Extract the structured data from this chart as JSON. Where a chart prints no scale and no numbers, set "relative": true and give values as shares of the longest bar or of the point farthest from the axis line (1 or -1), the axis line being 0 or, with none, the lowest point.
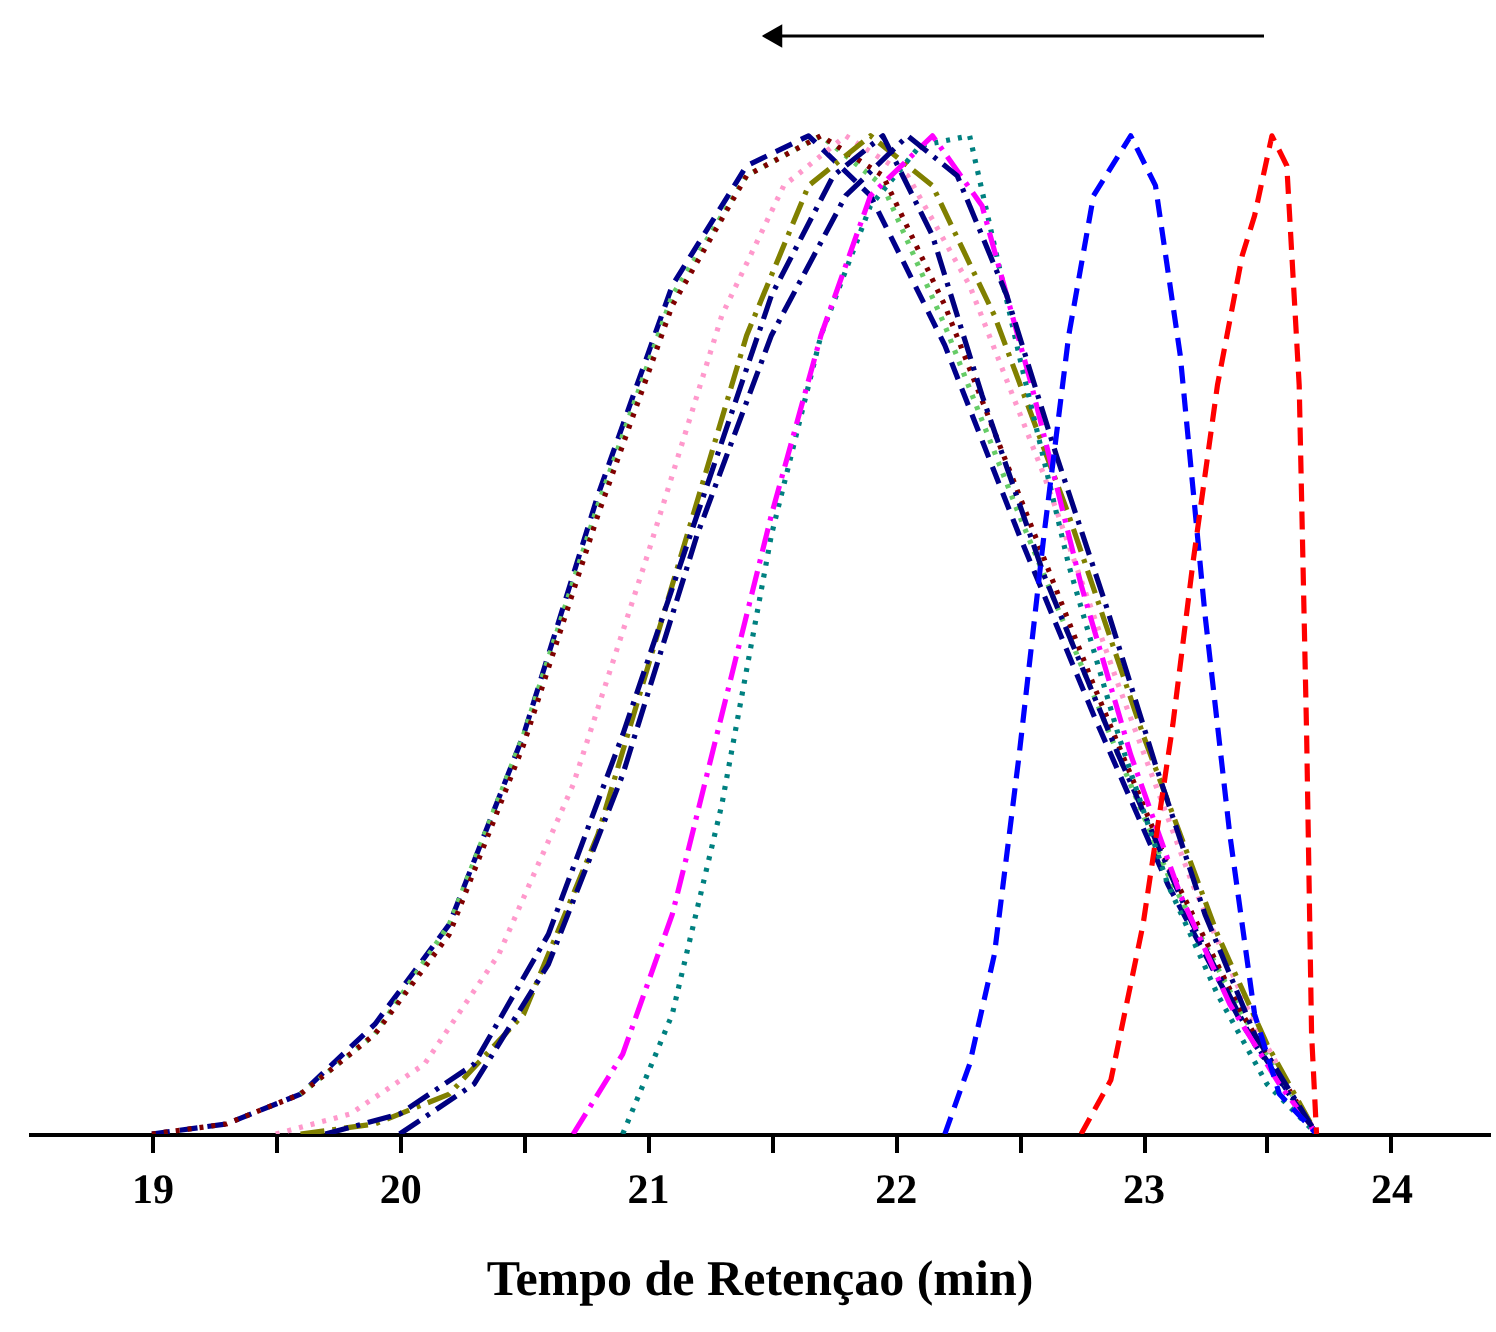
{
  "chart_data": {
    "type": "line",
    "relative": true,
    "xlabel": "Tempo de Retençao (min)",
    "xlim": [
      18.5,
      24.4
    ],
    "xticks": [
      19,
      {
        "value": 19.5,
        "label": null
      },
      20,
      {
        "value": 20.5,
        "label": null
      },
      21,
      {
        "value": 21.5,
        "label": null
      },
      22,
      {
        "value": 22.5,
        "label": null
      },
      23,
      {
        "value": 23.5,
        "label": null
      },
      24
    ],
    "grid": false,
    "legend": false,
    "tick_labels": "x",
    "marker": "none",
    "series": [
      {
        "color": "#00008b",
        "line_style": "dashed",
        "x": [
          19.0,
          19.3,
          19.6,
          19.9,
          20.2,
          20.5,
          20.8,
          21.1,
          21.4,
          21.65,
          21.9,
          22.2,
          22.5,
          22.8,
          23.1,
          23.4,
          23.7
        ],
        "values": [
          0,
          0.01,
          0.04,
          0.11,
          0.21,
          0.4,
          0.64,
          0.85,
          0.97,
          1,
          0.94,
          0.79,
          0.6,
          0.42,
          0.25,
          0.11,
          0
        ]
      },
      {
        "color": "#66cc66",
        "line_style": "dotted",
        "x": [
          19.6,
          19.9,
          20.2,
          20.5,
          20.8,
          21.1,
          21.4,
          21.7,
          21.95,
          22.2,
          22.5,
          22.8,
          23.1,
          23.4,
          23.7
        ],
        "values": [
          0.04,
          0.1,
          0.21,
          0.4,
          0.63,
          0.84,
          0.96,
          1,
          0.95,
          0.81,
          0.62,
          0.44,
          0.26,
          0.12,
          0
        ]
      },
      {
        "color": "#800000",
        "line_style": "dotted",
        "x": [
          19.0,
          19.3,
          19.6,
          19.9,
          20.2,
          20.5,
          20.8,
          21.1,
          21.4,
          21.7,
          21.95,
          22.2,
          22.5,
          22.8,
          23.1,
          23.4,
          23.7
        ],
        "values": [
          0,
          0.01,
          0.04,
          0.1,
          0.2,
          0.39,
          0.62,
          0.83,
          0.96,
          1,
          0.96,
          0.83,
          0.64,
          0.45,
          0.27,
          0.12,
          0
        ]
      },
      {
        "color": "#ff99cc",
        "line_style": "dotted",
        "x": [
          19.5,
          19.8,
          20.1,
          20.4,
          20.7,
          21.0,
          21.3,
          21.55,
          21.8,
          22.05,
          22.3,
          22.6,
          22.9,
          23.2,
          23.45,
          23.7
        ],
        "values": [
          0,
          0.02,
          0.07,
          0.18,
          0.35,
          0.58,
          0.82,
          0.95,
          1,
          0.96,
          0.85,
          0.66,
          0.45,
          0.25,
          0.11,
          0
        ]
      },
      {
        "color": "#808000",
        "line_style": "dashdot",
        "x": [
          19.6,
          19.9,
          20.2,
          20.5,
          20.8,
          21.1,
          21.4,
          21.65,
          21.9,
          22.15,
          22.4,
          22.7,
          23.0,
          23.3,
          23.5,
          23.7
        ],
        "values": [
          0,
          0.01,
          0.04,
          0.12,
          0.3,
          0.55,
          0.8,
          0.95,
          1,
          0.95,
          0.82,
          0.62,
          0.4,
          0.2,
          0.09,
          0
        ]
      },
      {
        "color": "#000080",
        "line_style": "dashdot",
        "x": [
          19.7,
          20.0,
          20.3,
          20.6,
          20.9,
          21.2,
          21.5,
          21.75,
          21.95,
          22.15,
          22.35,
          22.6,
          22.9,
          23.2,
          23.45,
          23.7
        ],
        "values": [
          0,
          0.02,
          0.07,
          0.2,
          0.4,
          0.62,
          0.84,
          0.96,
          1,
          0.9,
          0.74,
          0.56,
          0.38,
          0.21,
          0.09,
          0
        ]
      },
      {
        "color": "#008080",
        "line_style": "dotted",
        "x": [
          20.9,
          21.1,
          21.3,
          21.5,
          21.7,
          21.9,
          22.1,
          22.3,
          22.5,
          22.7,
          22.9,
          23.1,
          23.3,
          23.5,
          23.7
        ],
        "values": [
          0,
          0.12,
          0.33,
          0.6,
          0.8,
          0.93,
          0.99,
          1,
          0.78,
          0.57,
          0.4,
          0.25,
          0.14,
          0.05,
          0
        ]
      },
      {
        "color": "#ff00ff",
        "line_style": "dashdot",
        "x": [
          20.7,
          20.9,
          21.1,
          21.3,
          21.5,
          21.7,
          21.9,
          22.15,
          22.35,
          22.55,
          22.75,
          22.95,
          23.15,
          23.35,
          23.55,
          23.7
        ],
        "values": [
          0,
          0.08,
          0.22,
          0.42,
          0.62,
          0.8,
          0.94,
          1,
          0.93,
          0.75,
          0.55,
          0.38,
          0.24,
          0.13,
          0.05,
          0
        ]
      },
      {
        "color": "#000080",
        "line_style": "dashdot",
        "x": [
          20.0,
          20.3,
          20.6,
          20.9,
          21.2,
          21.5,
          21.8,
          22.05,
          22.25,
          22.45,
          22.65,
          22.85,
          23.05,
          23.25,
          23.45,
          23.7
        ],
        "values": [
          0,
          0.05,
          0.17,
          0.36,
          0.6,
          0.8,
          0.94,
          1,
          0.96,
          0.84,
          0.68,
          0.53,
          0.37,
          0.22,
          0.1,
          0
        ]
      },
      {
        "color": "#0000ff",
        "line_style": "dashed",
        "x": [
          22.2,
          22.3,
          22.4,
          22.5,
          22.6,
          22.7,
          22.8,
          22.95,
          23.05,
          23.15,
          23.25,
          23.35,
          23.45,
          23.55,
          23.7
        ],
        "values": [
          0,
          0.07,
          0.18,
          0.38,
          0.6,
          0.8,
          0.94,
          1,
          0.95,
          0.78,
          0.52,
          0.3,
          0.12,
          0.04,
          0
        ]
      },
      {
        "color": "#ff0000",
        "line_style": "dashed",
        "x": [
          22.75,
          22.87,
          23.0,
          23.12,
          23.2,
          23.3,
          23.4,
          23.45,
          23.52,
          23.58,
          23.63,
          23.66,
          23.68,
          23.7
        ],
        "values": [
          0,
          0.054,
          0.21,
          0.41,
          0.57,
          0.75,
          0.88,
          0.92,
          1,
          0.97,
          0.75,
          0.4,
          0.1,
          0
        ]
      }
    ]
  }
}
